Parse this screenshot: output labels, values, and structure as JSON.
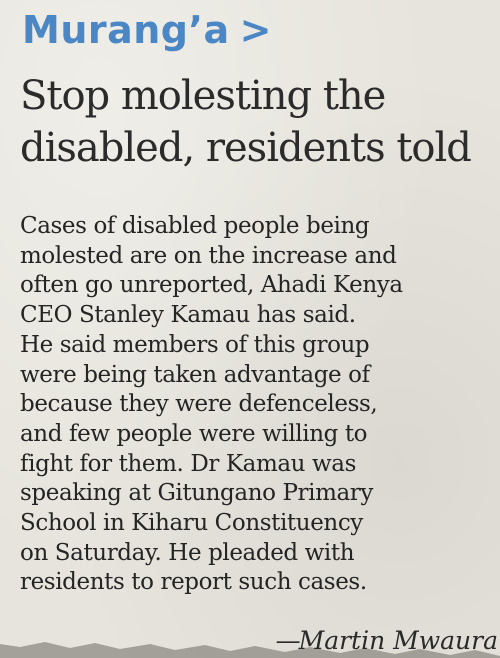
{
  "section": {
    "label": "Murang’a",
    "arrow": ">"
  },
  "headline": {
    "lines": [
      "Stop molesting the",
      "disabled, residents told"
    ]
  },
  "body": {
    "lines": [
      "Cases of disabled people being",
      "molested are on the increase and",
      "often go unreported, Ahadi Kenya",
      "CEO Stanley Kamau has said.",
      "He said members of this group",
      "were being taken advantage of",
      "because they were defenceless,",
      "and few people were willing to",
      "fight for them. Dr Kamau was",
      "speaking at Gitungano Primary",
      "School in Kiharu Constituency",
      "on Saturday. He pleaded with",
      "residents to report such cases."
    ]
  },
  "byline": {
    "dash": "—",
    "name": "Martin Mwaura"
  }
}
